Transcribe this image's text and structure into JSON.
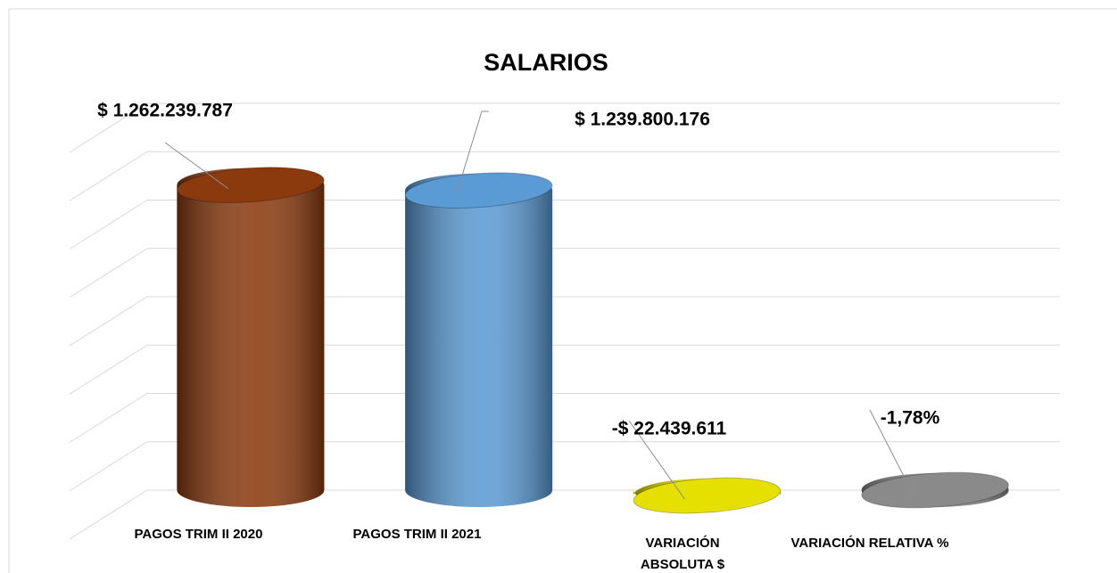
{
  "chart_data": {
    "type": "cylinder-bar",
    "title": "SALARIOS",
    "categories": [
      "PAGOS TRIM II 2020",
      "PAGOS TRIM II 2021",
      "VARIACIÓN ABSOLUTA $",
      "VARIACIÓN RELATIVA %"
    ],
    "values": [
      1262239787,
      1239800176,
      -22439611,
      -1.78
    ],
    "value_labels": [
      "$ 1.262.239.787",
      "$ 1.239.800.176",
      "-$ 22.439.611",
      "-1,78%"
    ],
    "colors": [
      "#8b3a0e",
      "#5b9bd5",
      "#e6e000",
      "#8a8a8a"
    ],
    "ylim": [
      0,
      1600000000
    ],
    "yticks": [
      0,
      200000000,
      400000000,
      600000000,
      800000000,
      1000000000,
      1200000000,
      1400000000,
      1600000000
    ],
    "grid": true
  }
}
